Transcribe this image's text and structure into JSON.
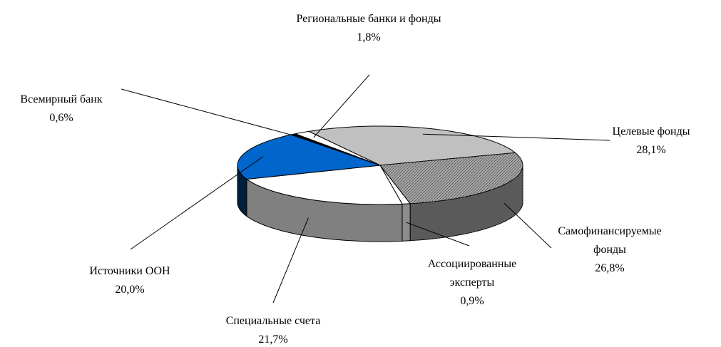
{
  "chart_data": {
    "type": "pie3d",
    "categories": [
      "Целевые фонды",
      "Самофинансируемые фонды",
      "Ассоциированные эксперты",
      "Специальные счета",
      "Источники ООН",
      "Всемирный банк",
      "Региональные банки и фонды"
    ],
    "values": [
      28.1,
      26.8,
      0.9,
      21.7,
      20.0,
      0.6,
      1.8
    ],
    "value_labels": [
      "28,1%",
      "26,8%",
      "0,9%",
      "21,7%",
      "20,0%",
      "0,6%",
      "1,8%"
    ],
    "colors": [
      "#c0c0c0",
      "#a8a8a8",
      "#ffffff",
      "#ffffff",
      "#0066cc",
      "#000000",
      "#ffffff"
    ]
  }
}
